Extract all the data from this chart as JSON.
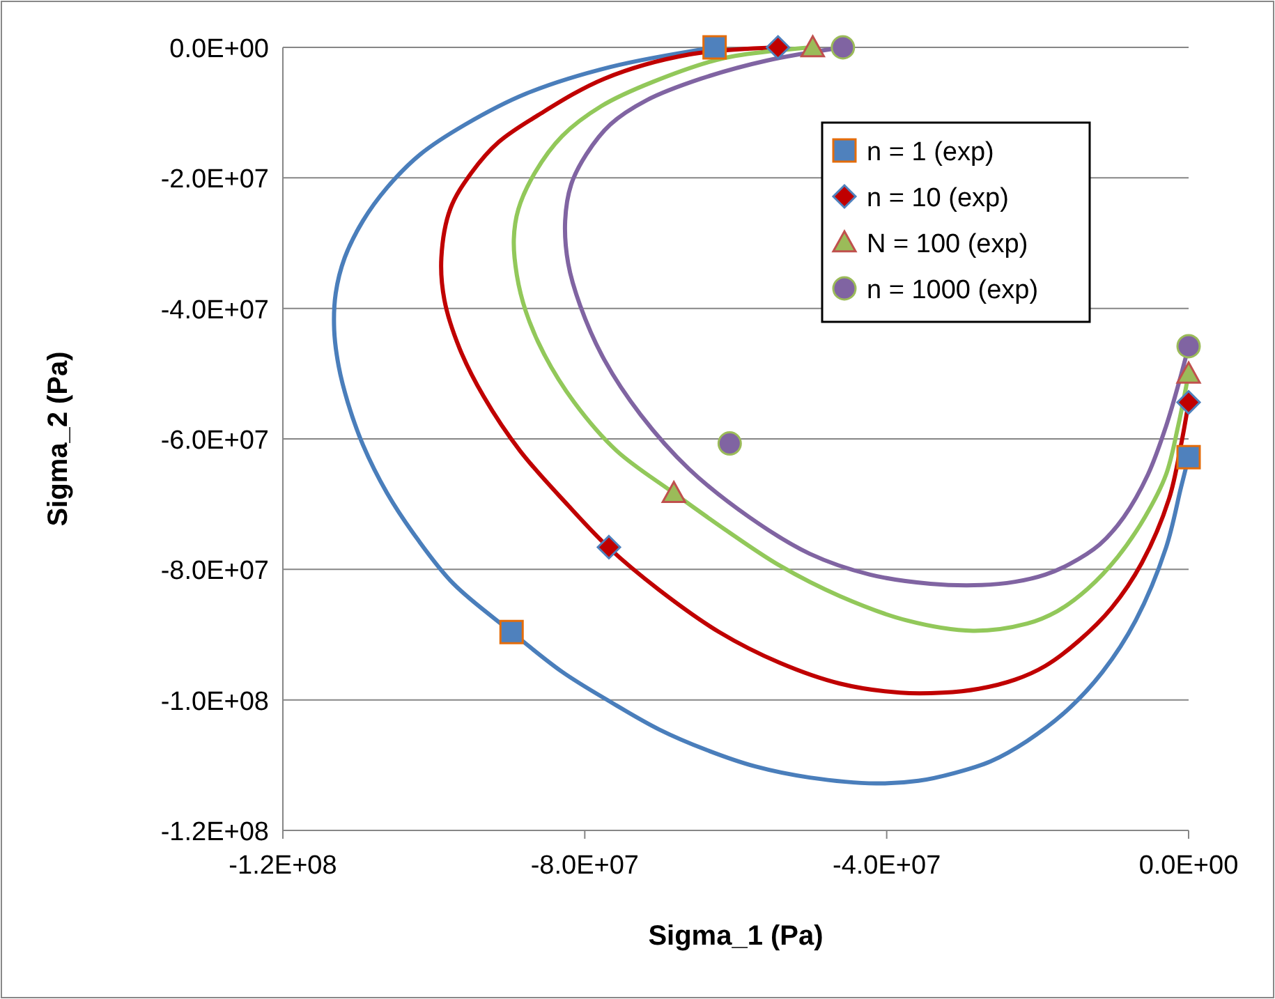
{
  "chart_data": {
    "type": "line",
    "xlabel": "Sigma_1 (Pa)",
    "ylabel": "Sigma_2 (Pa)",
    "xlim": [
      -120000000.0,
      0
    ],
    "ylim": [
      -120000000.0,
      0
    ],
    "xticks": [
      {
        "value": -120000000.0,
        "label": "-1.2E+08"
      },
      {
        "value": -80000000.0,
        "label": "-8.0E+07"
      },
      {
        "value": -40000000.0,
        "label": "-4.0E+07"
      },
      {
        "value": 0,
        "label": "0.0E+00"
      }
    ],
    "yticks": [
      {
        "value": 0,
        "label": "0.0E+00"
      },
      {
        "value": -20000000.0,
        "label": "-2.0E+07"
      },
      {
        "value": -40000000.0,
        "label": "-4.0E+07"
      },
      {
        "value": -60000000.0,
        "label": "-6.0E+07"
      },
      {
        "value": -80000000.0,
        "label": "-8.0E+07"
      },
      {
        "value": -100000000.0,
        "label": "-1.0E+08"
      },
      {
        "value": -120000000.0,
        "label": "-1.2E+08"
      }
    ],
    "grid": "y",
    "legend": "top right",
    "line_style": "solid",
    "series": [
      {
        "color": "#4a7ebb",
        "marker": "none",
        "x": [
          -62800000.0,
          -76600000.0,
          -87800000.0,
          -95800000.0,
          -101800000.0,
          -106200000.0,
          -109400000.0,
          -111800000.0,
          -113000000.0,
          -113200000.0,
          -112600000.0,
          -111400000.0,
          -109400000.0,
          -106200000.0,
          -102200000.0,
          -97400000.0,
          -89700000.0,
          -83000000.0,
          -76600000.0,
          -70200000.0,
          -63800000.0,
          -57400000.0,
          -50200000.0,
          -41400000.0,
          -35800000.0,
          -31000000.0,
          -26200000.0,
          -21400000.0,
          -16200000.0,
          -11400000.0,
          -7000000.0,
          -3000000.0,
          -1000000.0,
          0
        ],
        "values": [
          0,
          -3000000.0,
          -7100000.0,
          -11800000.0,
          -16400000.0,
          -21500000.0,
          -26600000.0,
          -32200000.0,
          -37700000.0,
          -43300000.0,
          -48900000.0,
          -54400000.0,
          -60900000.0,
          -68300000.0,
          -75300000.0,
          -82200000.0,
          -89600000.0,
          -95700000.0,
          -100300000.0,
          -104500000.0,
          -107700000.0,
          -110200000.0,
          -111900000.0,
          -112800000.0,
          -112400000.0,
          -111200000.0,
          -109400000.0,
          -106300000.0,
          -101700000.0,
          -95700000.0,
          -87800000.0,
          -76700000.0,
          -67400000.0,
          -62800000.0
        ]
      },
      {
        "color": "#c00000",
        "marker": "none",
        "x": [
          -54400000.0,
          -66200000.0,
          -77400000.0,
          -86200000.0,
          -91400000.0,
          -95000000.0,
          -97800000.0,
          -99000000.0,
          -98600000.0,
          -96600000.0,
          -93400000.0,
          -88600000.0,
          -82200000.0,
          -76800000.0,
          -70200000.0,
          -62200000.0,
          -54200000.0,
          -46200000.0,
          -38200000.0,
          -32600000.0,
          -27800000.0,
          -23000000.0,
          -19000000.0,
          -14600000.0,
          -10200000.0,
          -6200000.0,
          -2600000.0,
          -1000000.0,
          0
        ],
        "values": [
          0,
          -1100000.0,
          -4800000.0,
          -10400000.0,
          -14500000.0,
          -19200000.0,
          -24700000.0,
          -32200000.0,
          -38700000.0,
          -46100000.0,
          -53500000.0,
          -61800000.0,
          -70200000.0,
          -76700000.0,
          -83100000.0,
          -89600000.0,
          -94300000.0,
          -97500000.0,
          -98900000.0,
          -98900000.0,
          -98300000.0,
          -96900000.0,
          -94800000.0,
          -91000000.0,
          -85900000.0,
          -79000000.0,
          -69200000.0,
          -60900000.0,
          -54400000.0
        ]
      },
      {
        "color": "#92c85a",
        "marker": "none",
        "x": [
          -49800000.0,
          -61400000.0,
          -71000000.0,
          -77800000.0,
          -83000000.0,
          -86600000.0,
          -88800000.0,
          -89400000.0,
          -89000000.0,
          -87800000.0,
          -85400000.0,
          -81400000.0,
          -75800000.0,
          -68200000.0,
          -61400000.0,
          -54200000.0,
          -46200000.0,
          -37400000.0,
          -28600000.0,
          -21400000.0,
          -17400000.0,
          -13400000.0,
          -9400000.0,
          -5800000.0,
          -3000000.0,
          -1400000.0,
          0
        ],
        "values": [
          0,
          -1600000.0,
          -5300000.0,
          -9000000.0,
          -13600000.0,
          -19200000.0,
          -24800000.0,
          -29400000.0,
          -34900000.0,
          -40500000.0,
          -47000000.0,
          -54400000.0,
          -61800000.0,
          -68300000.0,
          -73900000.0,
          -79400000.0,
          -84100000.0,
          -87800000.0,
          -89400000.0,
          -88300000.0,
          -86400000.0,
          -83000000.0,
          -78100000.0,
          -72000000.0,
          -65500000.0,
          -58100000.0,
          -50000000.0
        ]
      },
      {
        "color": "#8064a2",
        "marker": "none",
        "x": [
          -45800000.0,
          -55800000.0,
          -64600000.0,
          -71800000.0,
          -76600000.0,
          -79800000.0,
          -81800000.0,
          -82600000.0,
          -82200000.0,
          -80600000.0,
          -77400000.0,
          -72600000.0,
          -66200000.0,
          -58200000.0,
          -50200000.0,
          -42200000.0,
          -34200000.0,
          -27400000.0,
          -23000000.0,
          -19000000.0,
          -15800000.0,
          -11800000.0,
          -8600000.0,
          -5400000.0,
          -3000000.0,
          -1000000.0,
          0
        ],
        "values": [
          0,
          -2000000.0,
          -4800000.0,
          -8100000.0,
          -11800000.0,
          -16400000.0,
          -21000000.0,
          -26600000.0,
          -33100000.0,
          -39600000.0,
          -47900000.0,
          -56300000.0,
          -64600000.0,
          -72000000.0,
          -77600000.0,
          -80800000.0,
          -82200000.0,
          -82400000.0,
          -81900000.0,
          -80800000.0,
          -79200000.0,
          -76200000.0,
          -72000000.0,
          -65500000.0,
          -58100000.0,
          -50200000.0,
          -45800000.0
        ]
      },
      {
        "type": "scatter",
        "name": "n = 1 (exp)",
        "color": "#4f81bd",
        "marker": "square",
        "x": [
          -62800000.0,
          -89700000.0,
          0
        ],
        "values": [
          0,
          -89600000.0,
          -62800000.0
        ]
      },
      {
        "type": "scatter",
        "name": "n = 10 (exp)",
        "color": "#c00000",
        "marker": "diamond",
        "x": [
          -54400000.0,
          -76800000.0,
          0
        ],
        "values": [
          0,
          -76600000.0,
          -54400000.0
        ]
      },
      {
        "type": "scatter",
        "name": "N = 100 (exp)",
        "color": "#9bbb59",
        "marker": "triangle",
        "x": [
          -49800000.0,
          -68200000.0,
          0
        ],
        "values": [
          0,
          -68300000.0,
          -50000000.0
        ]
      },
      {
        "type": "scatter",
        "name": "n = 1000 (exp)",
        "color": "#8064a2",
        "marker": "circle",
        "x": [
          -45800000.0,
          -60800000.0,
          0
        ],
        "values": [
          0,
          -60700000.0,
          -45800000.0
        ]
      }
    ]
  }
}
